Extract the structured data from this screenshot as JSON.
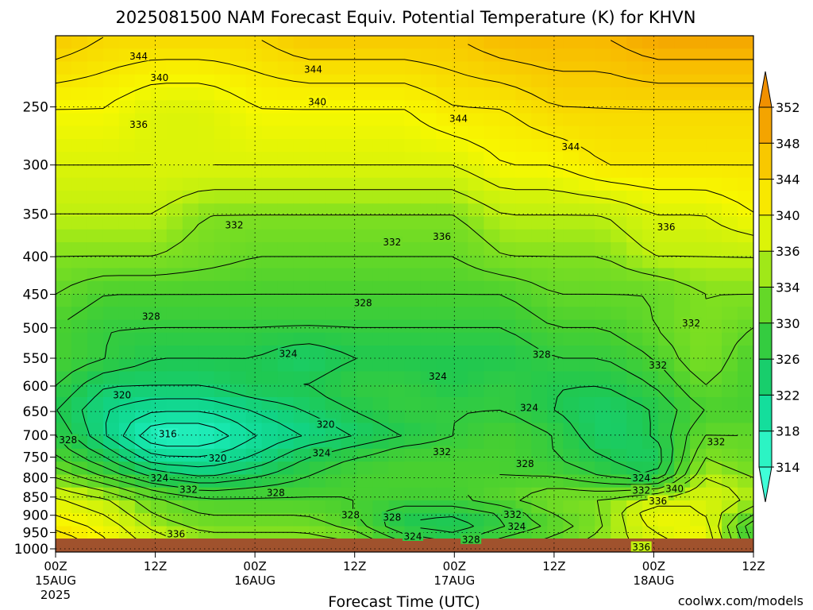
{
  "chart_data": {
    "type": "heatmap",
    "title": "2025081500 NAM Forecast Equiv. Potential Temperature (K) for KHVN",
    "xlabel": "Forecast Time (UTC)",
    "ylabel": "",
    "x_ticks": [
      {
        "hours": 0,
        "line1": "00Z",
        "line2": "15AUG",
        "line3": "2025"
      },
      {
        "hours": 12,
        "line1": "12Z",
        "line2": "",
        "line3": ""
      },
      {
        "hours": 24,
        "line1": "00Z",
        "line2": "16AUG",
        "line3": ""
      },
      {
        "hours": 36,
        "line1": "12Z",
        "line2": "",
        "line3": ""
      },
      {
        "hours": 48,
        "line1": "00Z",
        "line2": "17AUG",
        "line3": ""
      },
      {
        "hours": 60,
        "line1": "12Z",
        "line2": "",
        "line3": ""
      },
      {
        "hours": 72,
        "line1": "00Z",
        "line2": "18AUG",
        "line3": ""
      },
      {
        "hours": 84,
        "line1": "12Z",
        "line2": "",
        "line3": ""
      }
    ],
    "xlim": [
      0,
      84
    ],
    "y_ticks": [
      250,
      300,
      350,
      400,
      450,
      500,
      550,
      600,
      650,
      700,
      750,
      800,
      850,
      900,
      950,
      1000
    ],
    "ylim": [
      1010,
      200
    ],
    "y_scale": "log-pressure",
    "grid": true,
    "colorbar": {
      "ticks": [
        314,
        318,
        322,
        326,
        330,
        334,
        336,
        340,
        344,
        348,
        352
      ],
      "colors": [
        "#40ffd8",
        "#18e8b0",
        "#10d488",
        "#20c850",
        "#48d030",
        "#80e020",
        "#c0f010",
        "#f8f800",
        "#f8d800",
        "#f8b800",
        "#f09000"
      ],
      "placement": "right"
    },
    "ground_color": "#a0522d",
    "field": {
      "levels": [
        1000,
        950,
        900,
        850,
        800,
        750,
        700,
        650,
        600,
        550,
        500,
        450,
        400,
        350,
        300,
        250,
        200
      ],
      "hours": [
        0,
        6,
        12,
        18,
        24,
        30,
        36,
        42,
        48,
        54,
        60,
        66,
        72,
        78,
        84
      ],
      "values": [
        [
          346,
          340,
          338,
          336,
          336,
          336,
          336,
          334,
          332,
          334,
          336,
          336,
          336,
          340,
          334
        ],
        [
          342,
          340,
          336,
          334,
          334,
          334,
          332,
          326,
          324,
          328,
          330,
          334,
          338,
          340,
          326
        ],
        [
          340,
          338,
          334,
          332,
          332,
          332,
          330,
          326,
          326,
          328,
          332,
          334,
          340,
          338,
          332
        ],
        [
          338,
          336,
          332,
          330,
          330,
          330,
          330,
          330,
          330,
          332,
          334,
          334,
          336,
          338,
          336
        ],
        [
          334,
          330,
          326,
          324,
          326,
          328,
          330,
          330,
          330,
          330,
          330,
          328,
          326,
          336,
          334
        ],
        [
          330,
          326,
          320,
          320,
          322,
          326,
          328,
          330,
          330,
          330,
          328,
          326,
          324,
          334,
          332
        ],
        [
          328,
          322,
          316,
          316,
          320,
          322,
          324,
          326,
          328,
          330,
          328,
          324,
          326,
          332,
          332
        ],
        [
          326,
          322,
          320,
          320,
          322,
          324,
          326,
          328,
          328,
          328,
          326,
          324,
          326,
          330,
          330
        ],
        [
          328,
          324,
          324,
          324,
          326,
          326,
          328,
          328,
          326,
          328,
          326,
          326,
          328,
          332,
          330
        ],
        [
          330,
          328,
          326,
          326,
          326,
          324,
          326,
          326,
          326,
          326,
          328,
          328,
          330,
          334,
          330
        ],
        [
          330,
          328,
          328,
          328,
          328,
          328,
          328,
          328,
          328,
          328,
          330,
          330,
          332,
          334,
          332
        ],
        [
          332,
          330,
          330,
          330,
          330,
          330,
          330,
          330,
          330,
          330,
          332,
          332,
          332,
          334,
          334
        ],
        [
          334,
          334,
          334,
          333,
          332,
          332,
          332,
          332,
          332,
          334,
          334,
          334,
          336,
          336,
          336
        ],
        [
          336,
          336,
          336,
          334,
          334,
          334,
          334,
          334,
          334,
          336,
          336,
          336,
          338,
          338,
          340
        ],
        [
          338,
          338,
          338,
          338,
          338,
          338,
          338,
          338,
          338,
          340,
          340,
          342,
          342,
          342,
          342
        ],
        [
          340,
          340,
          338,
          338,
          340,
          340,
          340,
          340,
          342,
          342,
          344,
          344,
          344,
          344,
          344
        ],
        [
          346,
          344,
          344,
          344,
          344,
          346,
          346,
          346,
          346,
          348,
          348,
          348,
          350,
          350,
          350
        ]
      ]
    },
    "contour_labels": [
      {
        "text": "344",
        "hours": 10.0,
        "p": 213
      },
      {
        "text": "340",
        "hours": 12.5,
        "p": 228
      },
      {
        "text": "336",
        "hours": 10.0,
        "p": 264
      },
      {
        "text": "344",
        "hours": 31.0,
        "p": 222
      },
      {
        "text": "340",
        "hours": 31.5,
        "p": 246
      },
      {
        "text": "344",
        "hours": 48.5,
        "p": 259
      },
      {
        "text": "344",
        "hours": 62.0,
        "p": 283
      },
      {
        "text": "332",
        "hours": 21.5,
        "p": 362
      },
      {
        "text": "332",
        "hours": 40.5,
        "p": 382
      },
      {
        "text": "336",
        "hours": 46.5,
        "p": 375
      },
      {
        "text": "336",
        "hours": 73.5,
        "p": 364
      },
      {
        "text": "328",
        "hours": 11.5,
        "p": 482
      },
      {
        "text": "328",
        "hours": 37.0,
        "p": 462
      },
      {
        "text": "332",
        "hours": 76.5,
        "p": 492
      },
      {
        "text": "324",
        "hours": 28.0,
        "p": 542
      },
      {
        "text": "324",
        "hours": 46.0,
        "p": 582
      },
      {
        "text": "328",
        "hours": 58.5,
        "p": 543
      },
      {
        "text": "332",
        "hours": 72.5,
        "p": 562
      },
      {
        "text": "320",
        "hours": 8.0,
        "p": 617
      },
      {
        "text": "324",
        "hours": 57.0,
        "p": 642
      },
      {
        "text": "316",
        "hours": 13.5,
        "p": 697
      },
      {
        "text": "320",
        "hours": 32.5,
        "p": 676
      },
      {
        "text": "328",
        "hours": 1.5,
        "p": 710
      },
      {
        "text": "320",
        "hours": 19.5,
        "p": 752
      },
      {
        "text": "324",
        "hours": 32.0,
        "p": 740
      },
      {
        "text": "332",
        "hours": 46.5,
        "p": 737
      },
      {
        "text": "332",
        "hours": 79.5,
        "p": 714
      },
      {
        "text": "328",
        "hours": 56.5,
        "p": 765
      },
      {
        "text": "324",
        "hours": 12.5,
        "p": 800
      },
      {
        "text": "332",
        "hours": 16.0,
        "p": 830
      },
      {
        "text": "328",
        "hours": 26.5,
        "p": 838
      },
      {
        "text": "324",
        "hours": 70.5,
        "p": 800
      },
      {
        "text": "332",
        "hours": 70.5,
        "p": 832
      },
      {
        "text": "340",
        "hours": 74.5,
        "p": 828
      },
      {
        "text": "336",
        "hours": 72.5,
        "p": 860
      },
      {
        "text": "328",
        "hours": 35.5,
        "p": 898
      },
      {
        "text": "328",
        "hours": 40.5,
        "p": 905
      },
      {
        "text": "332",
        "hours": 55.0,
        "p": 897
      },
      {
        "text": "324",
        "hours": 55.5,
        "p": 932
      },
      {
        "text": "336",
        "hours": 14.5,
        "p": 954
      },
      {
        "text": "324",
        "hours": 43.0,
        "p": 961
      },
      {
        "text": "328",
        "hours": 50.0,
        "p": 970
      },
      {
        "text": "336",
        "hours": 70.5,
        "p": 994
      }
    ]
  },
  "credit": "coolwx.com/models"
}
